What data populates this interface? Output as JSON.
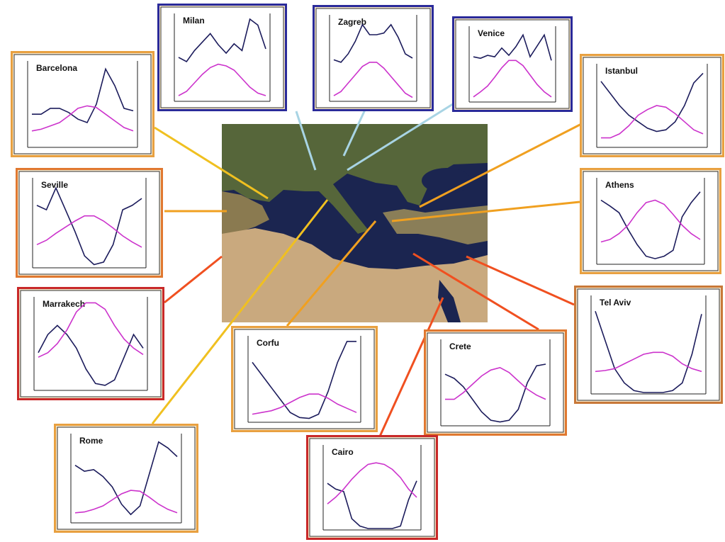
{
  "panels": [
    {
      "title": "Barcelona",
      "border": "#e8a040",
      "box": [
        15,
        72,
        203,
        150
      ],
      "series": [
        {
          "color": "#1c1c5c",
          "values": [
            38,
            38,
            45,
            45,
            40,
            32,
            28,
            50,
            92,
            72,
            45,
            42
          ]
        },
        {
          "color": "#cc33cc",
          "values": [
            18,
            20,
            24,
            28,
            36,
            45,
            48,
            46,
            38,
            30,
            22,
            18
          ]
        }
      ]
    },
    {
      "title": "Milan",
      "border": "#2a2a9a",
      "box": [
        222,
        5,
        183,
        152
      ],
      "series": [
        {
          "color": "#1c1c5c",
          "values": [
            50,
            45,
            58,
            68,
            78,
            65,
            55,
            66,
            58,
            95,
            88,
            60
          ]
        },
        {
          "color": "#cc33cc",
          "values": [
            5,
            10,
            20,
            30,
            38,
            42,
            40,
            35,
            25,
            15,
            8,
            5
          ]
        }
      ]
    },
    {
      "title": "Zagreb",
      "border": "#2a2a9a",
      "box": [
        441,
        7,
        171,
        150
      ],
      "series": [
        {
          "color": "#1c1c5c",
          "values": [
            48,
            45,
            55,
            70,
            90,
            78,
            78,
            80,
            90,
            75,
            55,
            50
          ]
        },
        {
          "color": "#cc33cc",
          "values": [
            5,
            10,
            20,
            30,
            40,
            45,
            45,
            38,
            28,
            18,
            8,
            3
          ]
        }
      ]
    },
    {
      "title": "Venice",
      "border": "#2a2a9a",
      "box": [
        638,
        23,
        170,
        135
      ],
      "series": [
        {
          "color": "#1c1c5c",
          "values": [
            60,
            58,
            62,
            60,
            72,
            62,
            74,
            90,
            60,
            75,
            90,
            55
          ]
        },
        {
          "color": "#cc33cc",
          "values": [
            5,
            12,
            20,
            32,
            45,
            55,
            55,
            48,
            35,
            22,
            12,
            5
          ]
        }
      ]
    },
    {
      "title": "Istanbul",
      "border": "#e8a040",
      "box": [
        818,
        76,
        204,
        146
      ],
      "series": [
        {
          "color": "#1c1c5c",
          "values": [
            80,
            65,
            50,
            38,
            30,
            22,
            18,
            20,
            30,
            50,
            78,
            90
          ]
        },
        {
          "color": "#cc33cc",
          "values": [
            10,
            10,
            15,
            25,
            38,
            45,
            50,
            48,
            40,
            30,
            20,
            15
          ]
        }
      ]
    },
    {
      "title": "Seville",
      "border": "#e07830",
      "box": [
        22,
        237,
        208,
        155
      ],
      "series": [
        {
          "color": "#1c1c5c",
          "values": [
            70,
            65,
            90,
            65,
            40,
            12,
            2,
            5,
            25,
            65,
            70,
            78
          ]
        },
        {
          "color": "#cc33cc",
          "values": [
            25,
            30,
            38,
            45,
            52,
            58,
            58,
            52,
            44,
            35,
            28,
            22
          ]
        }
      ]
    },
    {
      "title": "Athens",
      "border": "#e8a040",
      "box": [
        818,
        237,
        200,
        150
      ],
      "series": [
        {
          "color": "#1c1c5c",
          "values": [
            75,
            68,
            60,
            40,
            22,
            8,
            5,
            8,
            15,
            55,
            72,
            85
          ]
        },
        {
          "color": "#cc33cc",
          "values": [
            25,
            28,
            35,
            45,
            60,
            72,
            75,
            70,
            58,
            45,
            35,
            28
          ]
        }
      ]
    },
    {
      "title": "Marrakech",
      "border": "#c82828",
      "box": [
        24,
        405,
        208,
        160
      ],
      "series": [
        {
          "color": "#1c1c5c",
          "values": [
            40,
            60,
            70,
            60,
            45,
            22,
            6,
            4,
            10,
            35,
            60,
            45
          ]
        },
        {
          "color": "#cc33cc",
          "values": [
            35,
            40,
            50,
            65,
            85,
            95,
            95,
            88,
            70,
            55,
            45,
            38
          ]
        }
      ]
    },
    {
      "title": "Tel Aviv",
      "border": "#c87838",
      "box": [
        810,
        403,
        210,
        167
      ],
      "series": [
        {
          "color": "#1c1c5c",
          "values": [
            85,
            55,
            25,
            10,
            2,
            0,
            0,
            0,
            2,
            10,
            40,
            82
          ]
        },
        {
          "color": "#cc33cc",
          "values": [
            22,
            23,
            25,
            30,
            35,
            40,
            42,
            42,
            38,
            30,
            25,
            22
          ]
        }
      ]
    },
    {
      "title": "Corfu",
      "border": "#e8a040",
      "box": [
        326,
        460,
        207,
        150
      ],
      "series": [
        {
          "color": "#1c1c5c",
          "values": [
            70,
            55,
            40,
            25,
            10,
            4,
            3,
            8,
            35,
            70,
            95,
            95
          ]
        },
        {
          "color": "#cc33cc",
          "values": [
            8,
            10,
            12,
            16,
            22,
            28,
            32,
            32,
            27,
            20,
            15,
            10
          ]
        }
      ]
    },
    {
      "title": "Crete",
      "border": "#e07830",
      "box": [
        598,
        465,
        202,
        150
      ],
      "series": [
        {
          "color": "#1c1c5c",
          "values": [
            60,
            55,
            45,
            30,
            15,
            5,
            3,
            5,
            18,
            50,
            70,
            72
          ]
        },
        {
          "color": "#cc33cc",
          "values": [
            30,
            30,
            38,
            48,
            58,
            65,
            68,
            62,
            52,
            42,
            35,
            30
          ]
        }
      ]
    },
    {
      "title": "Rome",
      "border": "#e8a040",
      "box": [
        76,
        598,
        204,
        154
      ],
      "series": [
        {
          "color": "#1c1c5c",
          "values": [
            65,
            58,
            60,
            52,
            40,
            20,
            8,
            18,
            55,
            92,
            85,
            75
          ]
        },
        {
          "color": "#cc33cc",
          "values": [
            10,
            11,
            14,
            18,
            25,
            32,
            36,
            35,
            28,
            20,
            14,
            10
          ]
        }
      ]
    },
    {
      "title": "Cairo",
      "border": "#c82828",
      "box": [
        432,
        614,
        186,
        148
      ],
      "series": [
        {
          "color": "#1c1c5c",
          "values": [
            55,
            48,
            45,
            12,
            3,
            0,
            0,
            0,
            0,
            3,
            35,
            58
          ]
        },
        {
          "color": "#cc33cc",
          "values": [
            30,
            38,
            48,
            60,
            70,
            78,
            80,
            78,
            72,
            62,
            48,
            38
          ]
        }
      ]
    }
  ]
}
